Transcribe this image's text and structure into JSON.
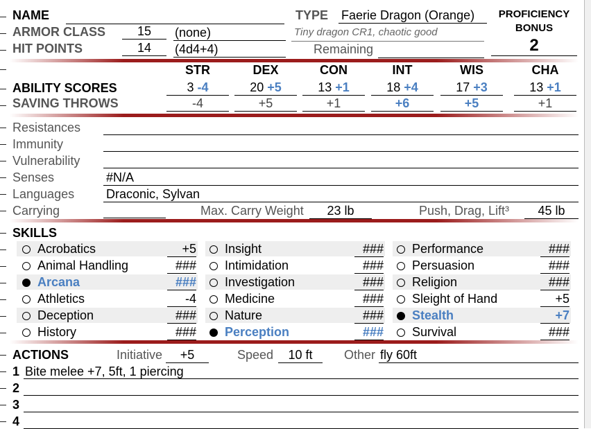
{
  "header": {
    "name_label": "NAME",
    "type_label": "TYPE",
    "type_value": "Faerie Dragon (Orange)",
    "type_sub": "Tiny dragon CR1, chaotic good",
    "ac_label": "ARMOR CLASS",
    "ac_value": "15",
    "ac_note": "(none)",
    "hp_label": "HIT POINTS",
    "hp_value": "14",
    "hp_dice": "(4d4+4)",
    "remaining_label": "Remaining",
    "prof_label": "PROFICIENCY BONUS",
    "prof_value": "2"
  },
  "abilities": {
    "scores_label": "ABILITY SCORES",
    "saves_label": "SAVING THROWS",
    "list": [
      {
        "abbr": "STR",
        "score": "3",
        "mod": "-4",
        "save": "-4",
        "save_prof": false
      },
      {
        "abbr": "DEX",
        "score": "20",
        "mod": "+5",
        "save": "+5",
        "save_prof": false
      },
      {
        "abbr": "CON",
        "score": "13",
        "mod": "+1",
        "save": "+1",
        "save_prof": false
      },
      {
        "abbr": "INT",
        "score": "18",
        "mod": "+4",
        "save": "+6",
        "save_prof": true
      },
      {
        "abbr": "WIS",
        "score": "17",
        "mod": "+3",
        "save": "+5",
        "save_prof": true
      },
      {
        "abbr": "CHA",
        "score": "13",
        "mod": "+1",
        "save": "+1",
        "save_prof": false
      }
    ]
  },
  "defenses": {
    "resistances_label": "Resistances",
    "immunity_label": "Immunity",
    "vulnerability_label": "Vulnerability",
    "senses_label": "Senses",
    "senses_value": "#N/A",
    "languages_label": "Languages",
    "languages_value": "Draconic, Sylvan",
    "carrying_label": "Carrying",
    "max_carry_label": "Max. Carry Weight",
    "max_carry_value": "23 lb",
    "push_label": "Push, Drag, Lift³",
    "push_value": "45 lb"
  },
  "skills": {
    "label": "SKILLS",
    "col1": [
      {
        "name": "Acrobatics",
        "value": "+5",
        "prof": false
      },
      {
        "name": "Animal Handling",
        "value": "###",
        "prof": false
      },
      {
        "name": "Arcana",
        "value": "###",
        "prof": true
      },
      {
        "name": "Athletics",
        "value": "-4",
        "prof": false
      },
      {
        "name": "Deception",
        "value": "###",
        "prof": false
      },
      {
        "name": "History",
        "value": "###",
        "prof": false
      }
    ],
    "col2": [
      {
        "name": "Insight",
        "value": "###",
        "prof": false
      },
      {
        "name": "Intimidation",
        "value": "###",
        "prof": false
      },
      {
        "name": "Investigation",
        "value": "###",
        "prof": false
      },
      {
        "name": "Medicine",
        "value": "###",
        "prof": false
      },
      {
        "name": "Nature",
        "value": "###",
        "prof": false
      },
      {
        "name": "Perception",
        "value": "###",
        "prof": true
      }
    ],
    "col3": [
      {
        "name": "Performance",
        "value": "###",
        "prof": false
      },
      {
        "name": "Persuasion",
        "value": "###",
        "prof": false
      },
      {
        "name": "Religion",
        "value": "###",
        "prof": false
      },
      {
        "name": "Sleight of Hand",
        "value": "+5",
        "prof": false
      },
      {
        "name": "Stealth",
        "value": "+7",
        "prof": true
      },
      {
        "name": "Survival",
        "value": "###",
        "prof": false
      }
    ]
  },
  "actions": {
    "label": "ACTIONS",
    "initiative_label": "Initiative",
    "initiative_value": "+5",
    "speed_label": "Speed",
    "speed_value": "10 ft",
    "other_label": "Other",
    "other_value": "fly 60ft",
    "rows": [
      {
        "num": "1",
        "text": "Bite melee +7, 5ft, 1 piercing"
      },
      {
        "num": "2",
        "text": ""
      },
      {
        "num": "3",
        "text": ""
      },
      {
        "num": "4",
        "text": ""
      }
    ]
  },
  "colors": {
    "accent_red": "#9b1c1c",
    "proficient_blue": "#4a7fc1"
  }
}
